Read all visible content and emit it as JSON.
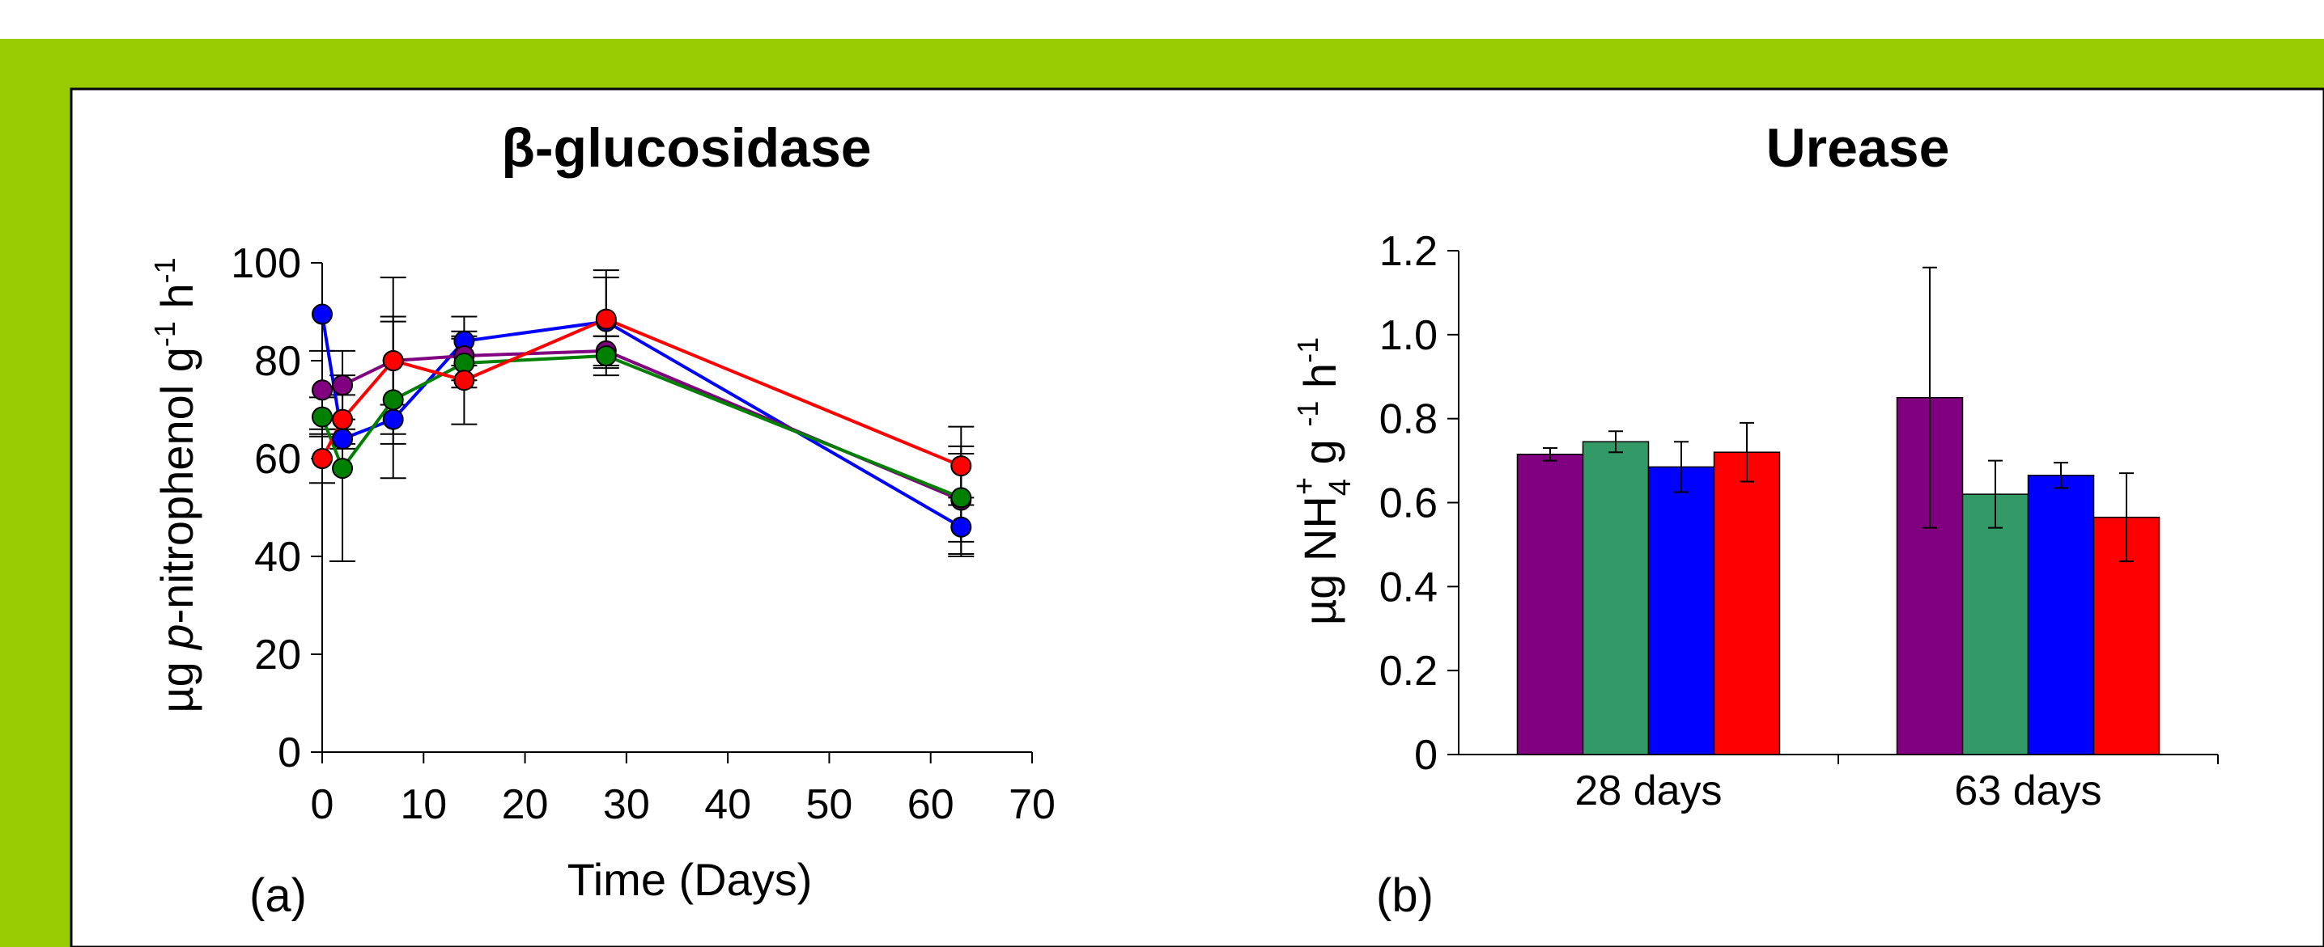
{
  "colors": {
    "frame_green": "#99cc00",
    "purple": "#800080",
    "green": "#008000",
    "sea_green": "#339966",
    "blue": "#0000ff",
    "red": "#ff0000"
  },
  "chart_data": [
    {
      "type": "line",
      "title": "β-glucosidase",
      "xlabel": "Time (Days)",
      "ylabel_prefix": "µg ",
      "ylabel_italic": "p",
      "ylabel_rest": "-nitrophenol g",
      "ylabel_sup1": "-1",
      "ylabel_mid": " h",
      "ylabel_sup2": "-1",
      "panel_label": "(a)",
      "xlim": [
        0,
        70
      ],
      "ylim": [
        0,
        100
      ],
      "xticks": [
        0,
        10,
        20,
        30,
        40,
        50,
        60,
        70
      ],
      "yticks": [
        0,
        20,
        40,
        60,
        80,
        100
      ],
      "grid": false,
      "series": [
        {
          "color": "#0000ff",
          "points": [
            {
              "x": 0,
              "y": 89.5,
              "err": 0
            },
            {
              "x": 2,
              "y": 64,
              "err": 2
            },
            {
              "x": 7,
              "y": 68,
              "err": 3
            },
            {
              "x": 14,
              "y": 84,
              "err": 5
            },
            {
              "x": 28,
              "y": 88,
              "err": 9
            },
            {
              "x": 63,
              "y": 46,
              "err": 6
            }
          ]
        },
        {
          "color": "#800080",
          "points": [
            {
              "x": 0,
              "y": 74,
              "err": 8
            },
            {
              "x": 2,
              "y": 75,
              "err": 7
            },
            {
              "x": 7,
              "y": 80,
              "err": 17
            },
            {
              "x": 14,
              "y": 81,
              "err": 5
            },
            {
              "x": 28,
              "y": 82,
              "err": 3
            },
            {
              "x": 63,
              "y": 51.5,
              "err": 11
            }
          ]
        },
        {
          "color": "#008000",
          "points": [
            {
              "x": 0,
              "y": 68.5,
              "err": 4
            },
            {
              "x": 2,
              "y": 58,
              "err": 19
            },
            {
              "x": 7,
              "y": 72,
              "err": 16
            },
            {
              "x": 14,
              "y": 79.5,
              "err": 5
            },
            {
              "x": 28,
              "y": 81,
              "err": 4
            },
            {
              "x": 63,
              "y": 52,
              "err": 9
            }
          ]
        },
        {
          "color": "#ff0000",
          "points": [
            {
              "x": 0,
              "y": 60,
              "err": 5
            },
            {
              "x": 2,
              "y": 68,
              "err": 5
            },
            {
              "x": 7,
              "y": 80,
              "err": 9
            },
            {
              "x": 14,
              "y": 76,
              "err": 9
            },
            {
              "x": 28,
              "y": 88.5,
              "err": 10
            },
            {
              "x": 63,
              "y": 58.5,
              "err": 8
            }
          ]
        }
      ]
    },
    {
      "type": "bar",
      "title": "Urease",
      "ylabel_main": "µg NH",
      "ylabel_sub": "4",
      "ylabel_sup": "+",
      "ylabel_g": " g ",
      "ylabel_sup_a": "-1",
      "ylabel_h": " h",
      "ylabel_sup_b": "-1",
      "panel_label": "(b)",
      "categories": [
        "28 days",
        "63 days"
      ],
      "ylim": [
        0,
        1.2
      ],
      "yticks": [
        "0",
        "0.2",
        "0.4",
        "0.6",
        "0.8",
        "1.0",
        "1.2"
      ],
      "grid": false,
      "series": [
        {
          "color": "#800080",
          "values": [
            0.715,
            0.85
          ],
          "errors": [
            0.015,
            0.31
          ]
        },
        {
          "color": "#339966",
          "values": [
            0.745,
            0.62
          ],
          "errors": [
            0.025,
            0.08
          ]
        },
        {
          "color": "#0000ff",
          "values": [
            0.685,
            0.665
          ],
          "errors": [
            0.06,
            0.03
          ]
        },
        {
          "color": "#ff0000",
          "values": [
            0.72,
            0.565
          ],
          "errors": [
            0.07,
            0.105
          ]
        }
      ]
    }
  ]
}
